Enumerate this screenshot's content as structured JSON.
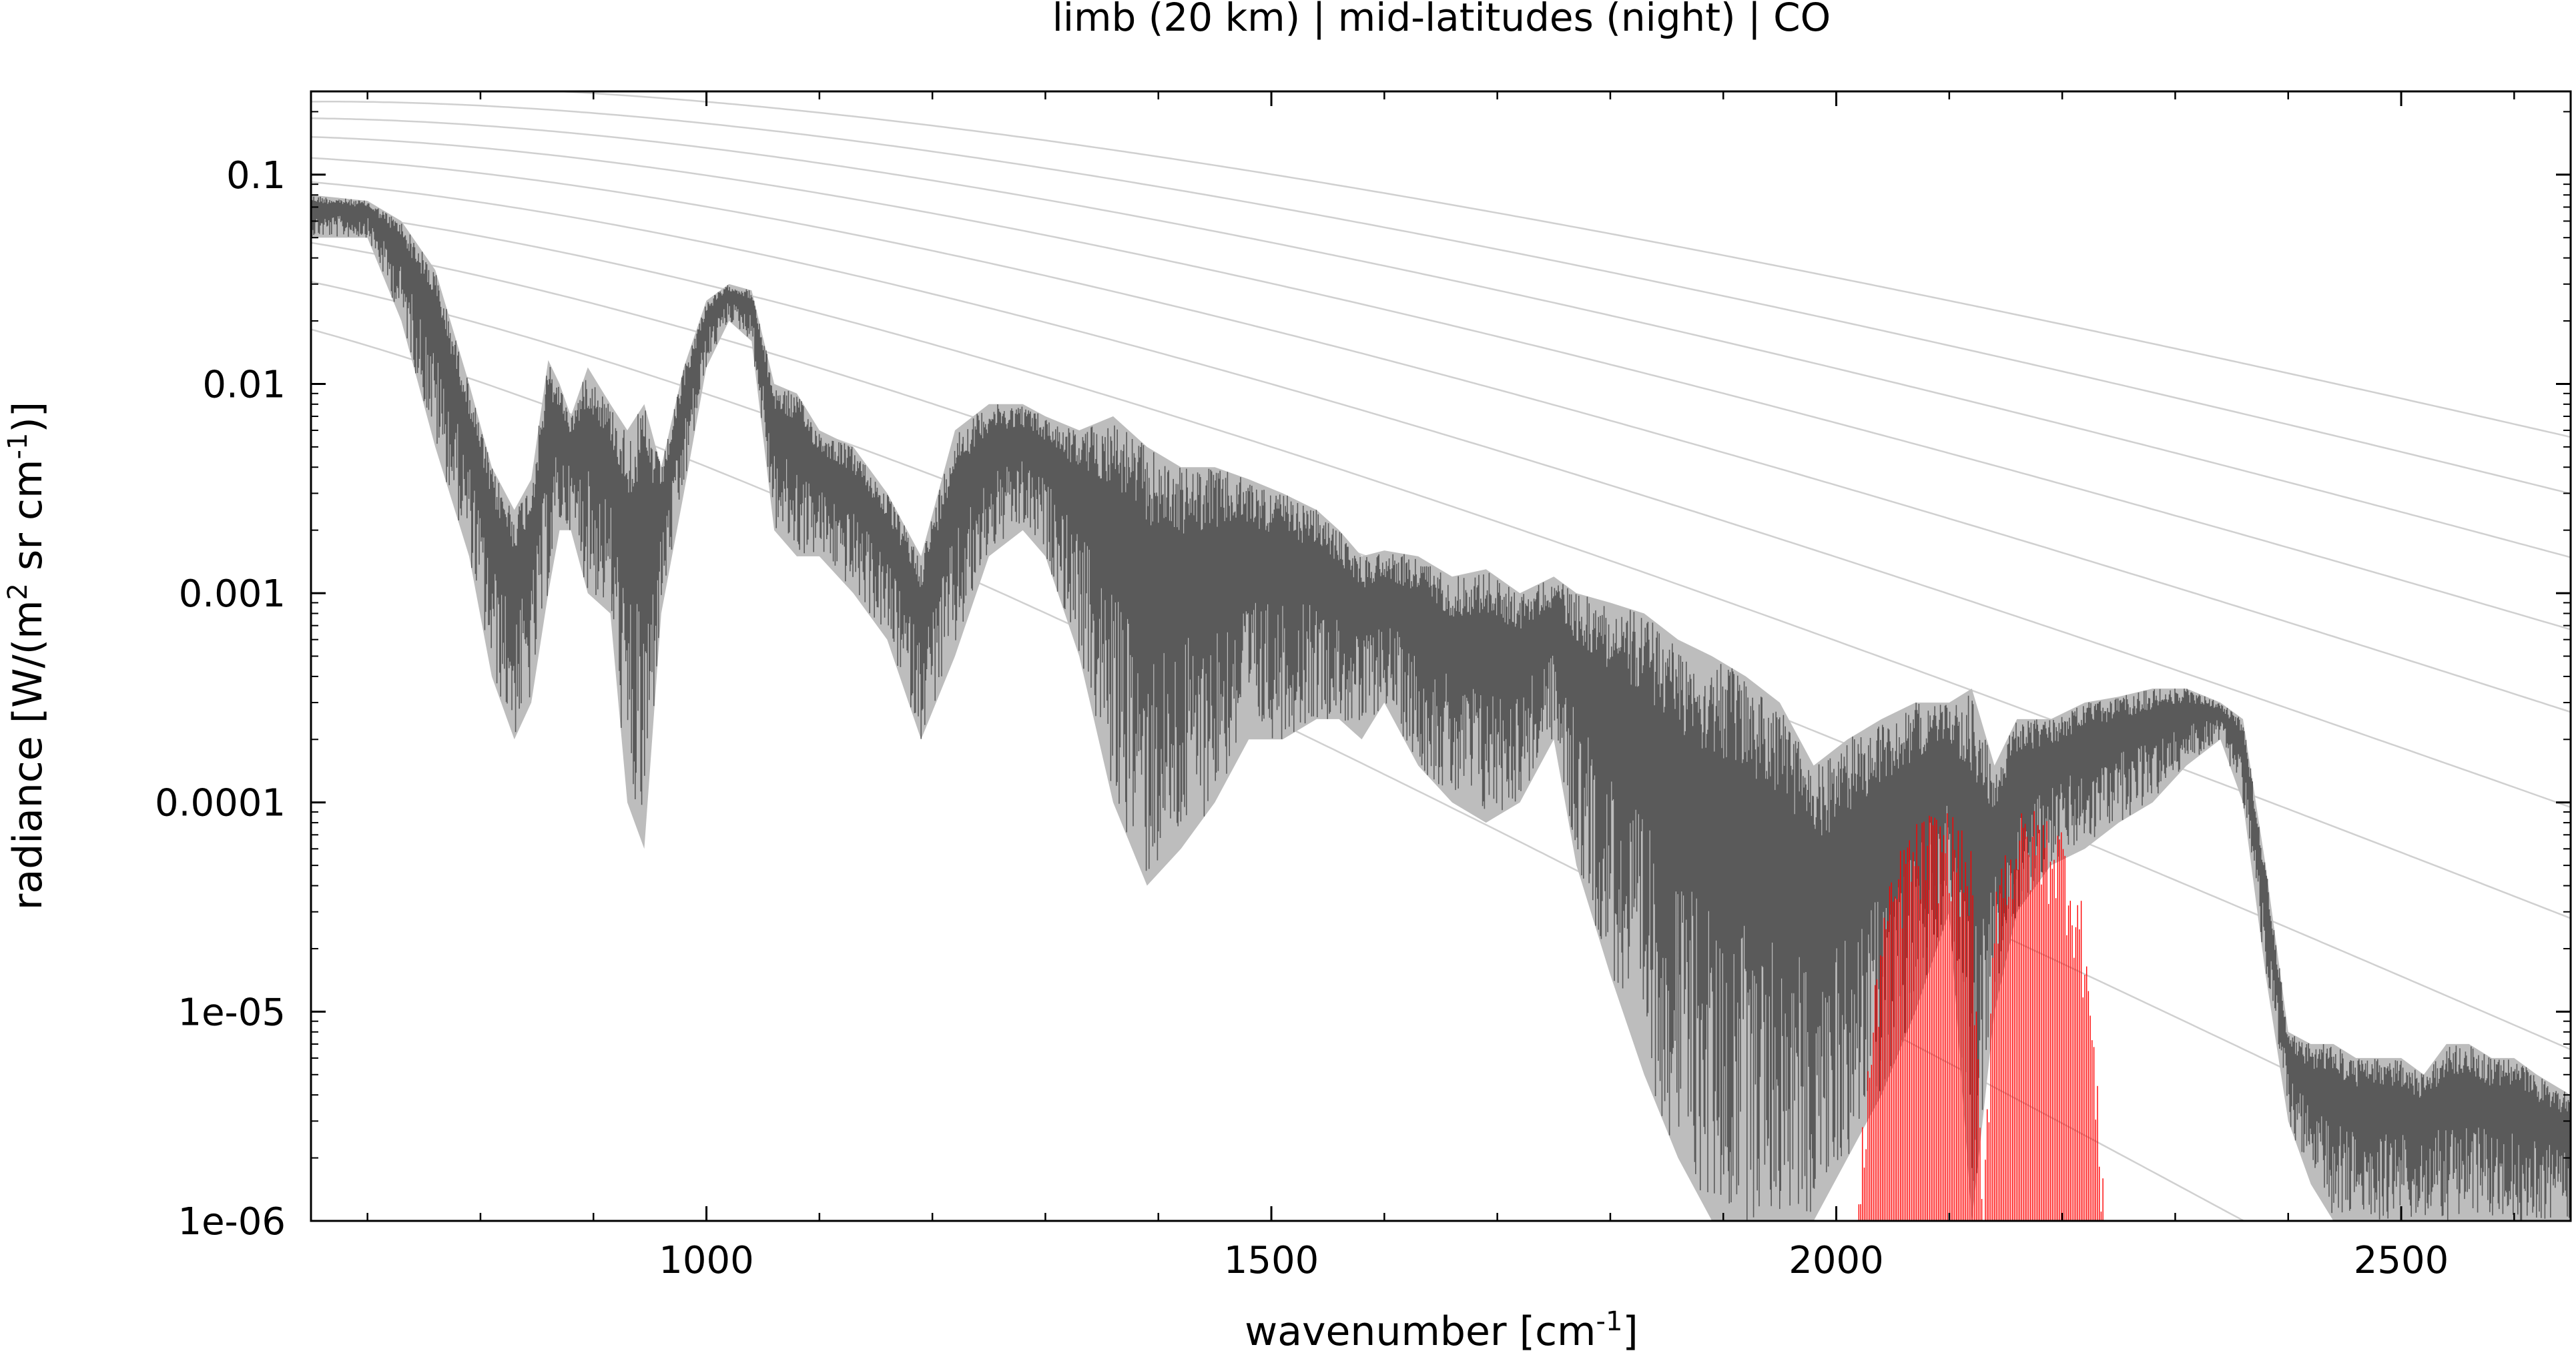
{
  "chart_data": {
    "type": "line",
    "title": "limb (20 km) | mid-latitudes (night) | CO",
    "xlabel": {
      "prefix": "wavenumber [cm",
      "sup": "-1",
      "suffix": "]"
    },
    "ylabel": {
      "prefix": "radiance [W/(m",
      "sup1": "2",
      "mid": " sr cm",
      "sup2": "-1",
      "suffix": ")]"
    },
    "xlim": [
      650,
      2650
    ],
    "ylim": [
      1e-06,
      0.25
    ],
    "y_scale": "log",
    "x_ticks": [
      {
        "value": 1000,
        "label": "1000"
      },
      {
        "value": 1500,
        "label": "1500"
      },
      {
        "value": 2000,
        "label": "2000"
      },
      {
        "value": 2500,
        "label": "2500"
      }
    ],
    "x_minor_ticks": [
      700,
      800,
      900,
      1100,
      1200,
      1300,
      1400,
      1600,
      1700,
      1800,
      1900,
      2100,
      2200,
      2300,
      2400,
      2600
    ],
    "y_ticks": [
      {
        "value": 0.1,
        "label": "0.1"
      },
      {
        "value": 0.01,
        "label": "0.01"
      },
      {
        "value": 0.001,
        "label": "0.001"
      },
      {
        "value": 0.0001,
        "label": "0.0001"
      },
      {
        "value": 1e-05,
        "label": "1e-05"
      },
      {
        "value": 1e-06,
        "label": "1e-06"
      }
    ],
    "grid": false,
    "legend": "none",
    "colors": {
      "radiance_total": "#5a5a5a",
      "radiance_light": "#bdbdbd",
      "co_contribution": "#ff0000",
      "planck_reference": "#d0d0d0",
      "axes": "#000000"
    },
    "series": [
      {
        "kind": "planck_reference_curves",
        "temperature_K": [
          180,
          200,
          220,
          240,
          260,
          280,
          300,
          320,
          340,
          360
        ]
      },
      {
        "kind": "spectrum_envelope",
        "color_key": "radiance_total",
        "x": [
          650,
          700,
          730,
          760,
          790,
          810,
          830,
          845,
          860,
          870,
          880,
          895,
          915,
          930,
          945,
          960,
          980,
          1000,
          1020,
          1040,
          1060,
          1080,
          1100,
          1130,
          1160,
          1190,
          1220,
          1250,
          1280,
          1300,
          1330,
          1360,
          1390,
          1420,
          1450,
          1480,
          1510,
          1540,
          1560,
          1580,
          1600,
          1630,
          1660,
          1690,
          1720,
          1750,
          1770,
          1800,
          1830,
          1860,
          1890,
          1920,
          1950,
          1980,
          2010,
          2040,
          2070,
          2100,
          2120,
          2140,
          2160,
          2190,
          2220,
          2250,
          2280,
          2310,
          2340,
          2360,
          2380,
          2400,
          2420,
          2440,
          2460,
          2480,
          2500,
          2520,
          2540,
          2560,
          2580,
          2600,
          2620,
          2650
        ],
        "upper": [
          0.08,
          0.075,
          0.06,
          0.035,
          0.01,
          0.004,
          0.0025,
          0.0035,
          0.013,
          0.01,
          0.007,
          0.012,
          0.008,
          0.006,
          0.008,
          0.004,
          0.012,
          0.025,
          0.03,
          0.028,
          0.01,
          0.009,
          0.006,
          0.005,
          0.003,
          0.0015,
          0.006,
          0.008,
          0.008,
          0.007,
          0.006,
          0.007,
          0.005,
          0.004,
          0.004,
          0.0035,
          0.003,
          0.0025,
          0.002,
          0.0015,
          0.0016,
          0.0015,
          0.0012,
          0.0013,
          0.001,
          0.0012,
          0.001,
          0.0009,
          0.0008,
          0.0006,
          0.0005,
          0.0004,
          0.0003,
          0.00015,
          0.0002,
          0.00025,
          0.0003,
          0.0003,
          0.00035,
          0.00015,
          0.00025,
          0.00025,
          0.0003,
          0.00032,
          0.00035,
          0.00035,
          0.0003,
          0.00025,
          5e-05,
          8e-06,
          7e-06,
          7e-06,
          6e-06,
          6e-06,
          6e-06,
          5e-06,
          7e-06,
          7e-06,
          6e-06,
          6e-06,
          5e-06,
          4e-06
        ],
        "lower": [
          0.05,
          0.05,
          0.02,
          0.005,
          0.0015,
          0.0004,
          0.0002,
          0.0003,
          0.001,
          0.002,
          0.002,
          0.001,
          0.0008,
          0.0001,
          6e-05,
          0.0008,
          0.003,
          0.012,
          0.02,
          0.016,
          0.002,
          0.0015,
          0.0015,
          0.001,
          0.0006,
          0.0002,
          0.0005,
          0.0015,
          0.002,
          0.0015,
          0.0005,
          0.0001,
          4e-05,
          6e-05,
          0.0001,
          0.0002,
          0.0002,
          0.00025,
          0.00025,
          0.0002,
          0.0003,
          0.00015,
          0.0001,
          8e-05,
          0.0001,
          0.0002,
          5e-05,
          1.5e-05,
          5e-06,
          2e-06,
          1e-06,
          1e-06,
          1e-06,
          1e-06,
          2e-06,
          4e-06,
          1e-05,
          3e-05,
          1e-06,
          1e-05,
          3e-05,
          5e-05,
          6e-05,
          8e-05,
          0.0001,
          0.00015,
          0.0002,
          0.0001,
          1.5e-05,
          3e-06,
          1.5e-06,
          1e-06,
          1e-06,
          1e-06,
          1e-06,
          1e-06,
          1e-06,
          1e-06,
          1e-06,
          1e-06,
          1e-06,
          1e-06
        ]
      },
      {
        "kind": "co_band",
        "color_key": "co_contribution",
        "x": [
          2020,
          2040,
          2060,
          2080,
          2100,
          2120,
          2130,
          2140,
          2160,
          2180,
          2200,
          2220,
          2240
        ],
        "upper": [
          2e-06,
          3e-05,
          7e-05,
          9e-05,
          9.5e-05,
          6e-05,
          1e-06,
          5e-05,
          9e-05,
          9.5e-05,
          8e-05,
          3e-05,
          1e-06
        ]
      }
    ]
  }
}
